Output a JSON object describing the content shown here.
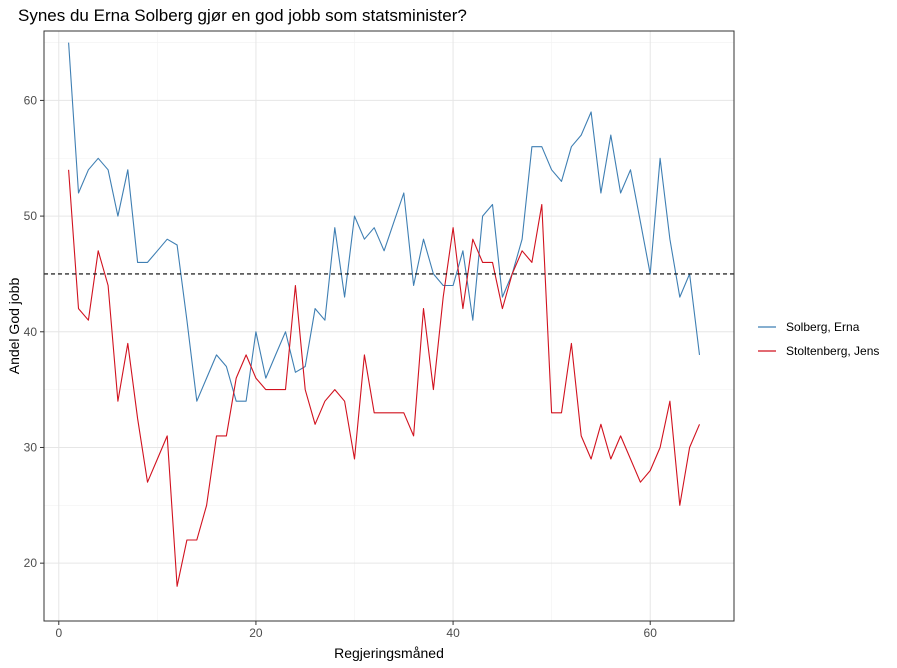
{
  "chart_data": {
    "type": "line",
    "title": "Synes du Erna Solberg gjør en god jobb som statsminister?",
    "xlabel": "Regjeringsmåned",
    "ylabel": "Andel God jobb",
    "xlim": [
      -1.5,
      68.5
    ],
    "ylim": [
      15,
      66
    ],
    "x_ticks": [
      0,
      20,
      40,
      60
    ],
    "y_ticks": [
      20,
      30,
      40,
      50,
      60
    ],
    "reference_line": {
      "y": 45,
      "style": "dashed",
      "color": "#000000"
    },
    "grid": true,
    "legend_position": "right",
    "series": [
      {
        "name": "Solberg, Erna",
        "color": "#3f7fb3",
        "x": [
          1,
          2,
          3,
          4,
          5,
          6,
          7,
          8,
          9,
          10,
          11,
          12,
          13,
          14,
          15,
          16,
          17,
          18,
          19,
          20,
          21,
          22,
          23,
          24,
          25,
          26,
          27,
          28,
          29,
          30,
          31,
          32,
          33,
          34,
          35,
          36,
          37,
          38,
          39,
          40,
          41,
          42,
          43,
          44,
          45,
          46,
          47,
          48,
          49,
          50,
          51,
          52,
          53,
          54,
          55,
          56,
          57,
          58,
          59,
          60,
          61,
          62,
          63,
          64,
          65
        ],
        "values": [
          65,
          52,
          54,
          55,
          54,
          50,
          54,
          46,
          46,
          47,
          48,
          47.5,
          41,
          34,
          36,
          38,
          37,
          34,
          34,
          40,
          36,
          38,
          40,
          36.5,
          37,
          42,
          41,
          49,
          43,
          50,
          48,
          49,
          47,
          49.5,
          52,
          44,
          48,
          45,
          44,
          44,
          47,
          41,
          50,
          51,
          43,
          45,
          48,
          56,
          56,
          54,
          53,
          56,
          57,
          59,
          52,
          57,
          52,
          54,
          49.5,
          45,
          55,
          48,
          43,
          45,
          38
        ]
      },
      {
        "name": "Stoltenberg, Jens",
        "color": "#d1121f",
        "x": [
          1,
          2,
          3,
          4,
          5,
          6,
          7,
          8,
          9,
          10,
          11,
          12,
          13,
          14,
          15,
          16,
          17,
          18,
          19,
          20,
          21,
          22,
          23,
          24,
          25,
          26,
          27,
          28,
          29,
          30,
          31,
          32,
          33,
          34,
          35,
          36,
          37,
          38,
          39,
          40,
          41,
          42,
          43,
          44,
          45,
          46,
          47,
          48,
          49,
          50,
          51,
          52,
          53,
          54,
          55,
          56,
          57,
          58,
          59,
          60,
          61,
          62,
          63,
          64,
          65
        ],
        "values": [
          54,
          42,
          41,
          47,
          44,
          34,
          39,
          32.5,
          27,
          29,
          31,
          18,
          22,
          22,
          25,
          31,
          31,
          36,
          38,
          36,
          35,
          35,
          35,
          44,
          35,
          32,
          34,
          35,
          34,
          29,
          38,
          33,
          33,
          33,
          33,
          31,
          42,
          35,
          43,
          49,
          42,
          48,
          46,
          46,
          42,
          45,
          47,
          46,
          51,
          33,
          33,
          39,
          31,
          29,
          32,
          29,
          31,
          29,
          27,
          28,
          30,
          34,
          25,
          30,
          32
        ]
      }
    ]
  }
}
